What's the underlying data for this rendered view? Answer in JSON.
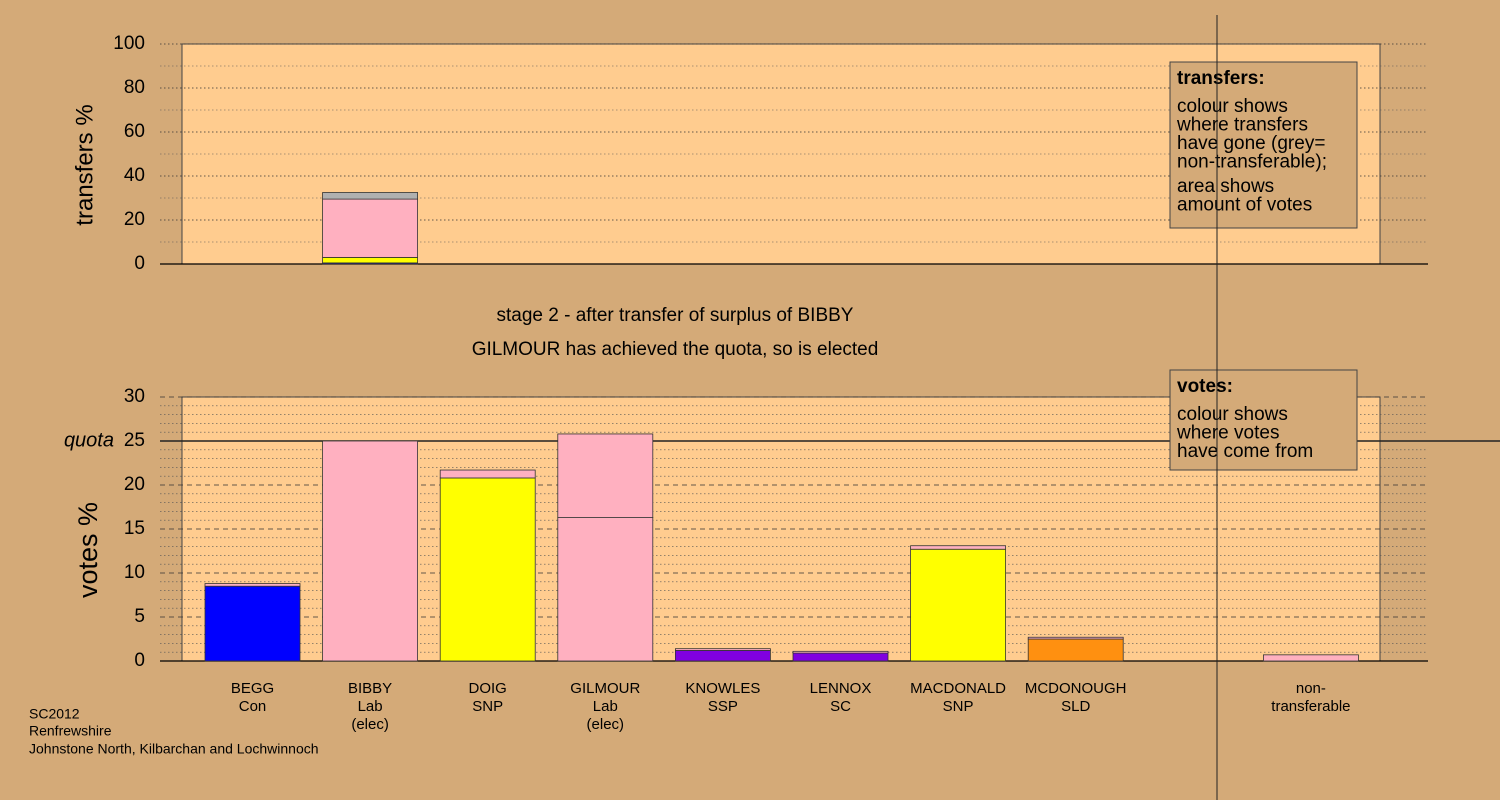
{
  "chart_data": [
    {
      "type": "stacked-bar",
      "ylabel": "transfers %",
      "ylim": [
        0,
        100
      ],
      "yticks": [
        0,
        20,
        40,
        60,
        80,
        100
      ],
      "minor_yticks": [
        10,
        30,
        50,
        70,
        90
      ],
      "grid": true,
      "series": [
        {
          "color": "#0000ff",
          "values": [
            null,
            0.5,
            null,
            null,
            null,
            null,
            null,
            null,
            null,
            null
          ]
        },
        {
          "color": "#ffff00",
          "values": [
            null,
            2.5,
            null,
            null,
            null,
            null,
            null,
            null,
            null,
            null
          ]
        },
        {
          "color": "#ffb0c0",
          "values": [
            null,
            26.5,
            null,
            null,
            null,
            null,
            null,
            null,
            null,
            null
          ]
        },
        {
          "color": "#b0b0b0",
          "values": [
            null,
            3,
            null,
            null,
            null,
            null,
            null,
            null,
            null,
            null
          ]
        }
      ],
      "note_heading": "transfers:",
      "note_lines": [
        "colour shows",
        "where transfers",
        "have gone (grey=",
        "non-transferable);",
        "area shows",
        "amount of votes"
      ]
    },
    {
      "type": "stacked-bar",
      "title": "stage 2 - after transfer of surplus of BIBBY",
      "subtitle": "GILMOUR has achieved the quota, so is elected",
      "ylabel": "votes %",
      "ylim": [
        0,
        30
      ],
      "yticks": [
        0,
        5,
        10,
        15,
        20,
        25,
        30
      ],
      "minor_yticks": [
        1,
        2,
        3,
        4,
        6,
        7,
        8,
        9,
        11,
        12,
        13,
        14,
        16,
        17,
        18,
        19,
        21,
        22,
        23,
        24,
        26,
        27,
        28,
        29
      ],
      "grid": true,
      "quota": 25,
      "quota_label": "quota",
      "categories": [
        [
          "BEGG",
          "Con"
        ],
        [
          "BIBBY",
          "Lab",
          "(elec)"
        ],
        [
          "DOIG",
          "SNP"
        ],
        [
          "GILMOUR",
          "Lab",
          "(elec)"
        ],
        [
          "KNOWLES",
          "SSP"
        ],
        [
          "LENNOX",
          "SC"
        ],
        [
          "MACDONALD",
          "SNP"
        ],
        [
          "MCDONOUGH",
          "SLD"
        ],
        null,
        [
          "non-",
          "transferable"
        ]
      ],
      "series": [
        {
          "colors": [
            "#0000ff",
            "#ffb0c0",
            "#ffff00",
            "#ffb0c0",
            "#8000e0",
            "#8000e0",
            "#ffff00",
            "#ff9010",
            null,
            null
          ],
          "values": [
            8.5,
            25,
            20.8,
            16.3,
            1.2,
            0.9,
            12.7,
            2.5,
            null,
            null
          ]
        },
        {
          "color": "#ffb0c0",
          "values": [
            0.3,
            null,
            0.9,
            9.5,
            0.2,
            0.2,
            0.4,
            0.2,
            null,
            0.7
          ]
        }
      ],
      "note_heading": "votes:",
      "note_lines": [
        "colour shows",
        "where votes",
        "have come from"
      ]
    }
  ],
  "footer": [
    "SC2012",
    "Renfrewshire",
    "Johnstone North, Kilbarchan and Lochwinnoch"
  ]
}
